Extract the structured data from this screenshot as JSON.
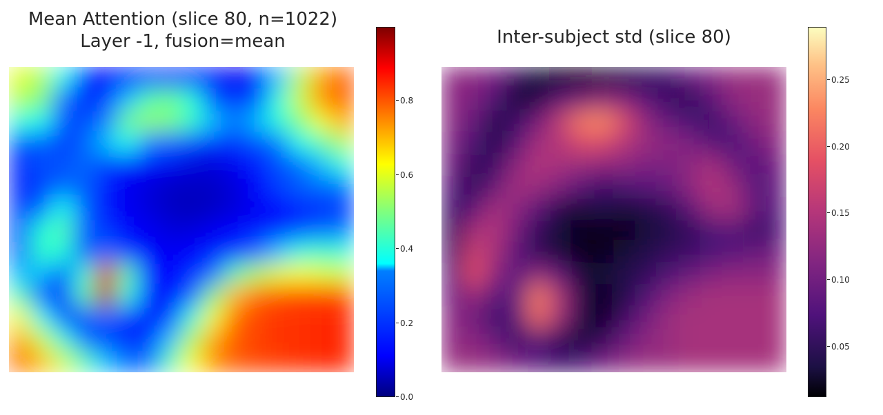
{
  "chart_data": [
    {
      "type": "heatmap",
      "title": "Mean Attention (slice 80, n=1022)",
      "subtitle": "Layer -1, fusion=mean",
      "colormap": "jet",
      "colorbar": {
        "range": [
          0.0,
          1.0
        ],
        "ticks": [
          "0.0",
          "0.2",
          "0.4",
          "0.6",
          "0.8"
        ],
        "tick_values": [
          0.0,
          0.2,
          0.4,
          0.6,
          0.8
        ]
      },
      "grid_shape": [
        14,
        16
      ],
      "values": [
        [
          0.6,
          0.55,
          0.38,
          0.18,
          0.12,
          0.15,
          0.22,
          0.18,
          0.15,
          0.12,
          0.1,
          0.12,
          0.35,
          0.55,
          0.72,
          0.8
        ],
        [
          0.55,
          0.5,
          0.3,
          0.18,
          0.22,
          0.35,
          0.45,
          0.48,
          0.4,
          0.25,
          0.2,
          0.25,
          0.4,
          0.58,
          0.74,
          0.8
        ],
        [
          0.4,
          0.38,
          0.25,
          0.25,
          0.32,
          0.48,
          0.52,
          0.5,
          0.42,
          0.35,
          0.32,
          0.35,
          0.4,
          0.5,
          0.62,
          0.72
        ],
        [
          0.25,
          0.28,
          0.22,
          0.28,
          0.35,
          0.38,
          0.32,
          0.28,
          0.22,
          0.18,
          0.2,
          0.25,
          0.32,
          0.38,
          0.45,
          0.55
        ],
        [
          0.18,
          0.25,
          0.25,
          0.3,
          0.22,
          0.15,
          0.12,
          0.1,
          0.08,
          0.08,
          0.1,
          0.15,
          0.25,
          0.3,
          0.35,
          0.4
        ],
        [
          0.18,
          0.22,
          0.3,
          0.28,
          0.15,
          0.1,
          0.08,
          0.06,
          0.06,
          0.06,
          0.08,
          0.12,
          0.22,
          0.28,
          0.3,
          0.32
        ],
        [
          0.22,
          0.28,
          0.38,
          0.28,
          0.15,
          0.1,
          0.08,
          0.06,
          0.05,
          0.06,
          0.08,
          0.1,
          0.12,
          0.15,
          0.18,
          0.2
        ],
        [
          0.25,
          0.4,
          0.45,
          0.28,
          0.2,
          0.12,
          0.1,
          0.08,
          0.08,
          0.1,
          0.12,
          0.15,
          0.18,
          0.25,
          0.3,
          0.32
        ],
        [
          0.28,
          0.42,
          0.4,
          0.25,
          0.3,
          0.2,
          0.12,
          0.1,
          0.12,
          0.15,
          0.2,
          0.28,
          0.35,
          0.4,
          0.42,
          0.4
        ],
        [
          0.35,
          0.35,
          0.25,
          0.4,
          0.92,
          0.45,
          0.15,
          0.12,
          0.18,
          0.3,
          0.45,
          0.55,
          0.6,
          0.62,
          0.6,
          0.58
        ],
        [
          0.45,
          0.25,
          0.2,
          0.45,
          0.95,
          0.4,
          0.12,
          0.15,
          0.28,
          0.5,
          0.7,
          0.78,
          0.8,
          0.82,
          0.82,
          0.82
        ],
        [
          0.62,
          0.38,
          0.22,
          0.25,
          0.3,
          0.2,
          0.12,
          0.22,
          0.4,
          0.62,
          0.78,
          0.82,
          0.84,
          0.84,
          0.85,
          0.85
        ],
        [
          0.72,
          0.58,
          0.4,
          0.3,
          0.22,
          0.18,
          0.2,
          0.35,
          0.55,
          0.72,
          0.8,
          0.82,
          0.84,
          0.84,
          0.85,
          0.85
        ],
        [
          0.78,
          0.7,
          0.58,
          0.45,
          0.35,
          0.3,
          0.32,
          0.45,
          0.62,
          0.75,
          0.8,
          0.82,
          0.83,
          0.84,
          0.85,
          0.85
        ]
      ]
    },
    {
      "type": "heatmap",
      "title": "Inter-subject std (slice 80)",
      "colormap": "magma",
      "colorbar": {
        "range": [
          0.012,
          0.29
        ],
        "ticks": [
          "0.05",
          "0.10",
          "0.15",
          "0.20",
          "0.25"
        ],
        "tick_values": [
          0.05,
          0.1,
          0.15,
          0.2,
          0.25
        ]
      },
      "grid_shape": [
        14,
        16
      ],
      "values": [
        [
          0.12,
          0.12,
          0.1,
          0.05,
          0.03,
          0.02,
          0.02,
          0.03,
          0.04,
          0.05,
          0.06,
          0.09,
          0.11,
          0.13,
          0.13,
          0.13
        ],
        [
          0.12,
          0.11,
          0.07,
          0.03,
          0.04,
          0.08,
          0.1,
          0.12,
          0.11,
          0.08,
          0.06,
          0.05,
          0.08,
          0.12,
          0.13,
          0.13
        ],
        [
          0.12,
          0.09,
          0.04,
          0.06,
          0.1,
          0.16,
          0.22,
          0.23,
          0.18,
          0.12,
          0.09,
          0.07,
          0.06,
          0.09,
          0.12,
          0.13
        ],
        [
          0.11,
          0.07,
          0.04,
          0.08,
          0.14,
          0.15,
          0.18,
          0.18,
          0.15,
          0.13,
          0.12,
          0.11,
          0.08,
          0.07,
          0.1,
          0.12
        ],
        [
          0.1,
          0.05,
          0.06,
          0.12,
          0.15,
          0.14,
          0.13,
          0.12,
          0.12,
          0.11,
          0.11,
          0.12,
          0.14,
          0.1,
          0.08,
          0.1
        ],
        [
          0.08,
          0.05,
          0.09,
          0.14,
          0.13,
          0.11,
          0.08,
          0.06,
          0.07,
          0.08,
          0.09,
          0.12,
          0.15,
          0.13,
          0.08,
          0.09
        ],
        [
          0.06,
          0.08,
          0.14,
          0.12,
          0.08,
          0.04,
          0.03,
          0.04,
          0.03,
          0.04,
          0.05,
          0.08,
          0.13,
          0.14,
          0.09,
          0.08
        ],
        [
          0.05,
          0.14,
          0.15,
          0.1,
          0.05,
          0.03,
          0.02,
          0.02,
          0.02,
          0.03,
          0.04,
          0.05,
          0.07,
          0.08,
          0.06,
          0.07
        ],
        [
          0.06,
          0.17,
          0.14,
          0.08,
          0.05,
          0.03,
          0.02,
          0.02,
          0.03,
          0.04,
          0.05,
          0.06,
          0.07,
          0.08,
          0.09,
          0.1
        ],
        [
          0.08,
          0.19,
          0.12,
          0.08,
          0.12,
          0.08,
          0.03,
          0.03,
          0.04,
          0.05,
          0.07,
          0.09,
          0.11,
          0.12,
          0.12,
          0.12
        ],
        [
          0.1,
          0.13,
          0.08,
          0.09,
          0.22,
          0.14,
          0.04,
          0.02,
          0.04,
          0.07,
          0.11,
          0.13,
          0.14,
          0.14,
          0.14,
          0.14
        ],
        [
          0.12,
          0.1,
          0.06,
          0.08,
          0.21,
          0.13,
          0.04,
          0.02,
          0.06,
          0.1,
          0.13,
          0.14,
          0.14,
          0.14,
          0.14,
          0.14
        ],
        [
          0.12,
          0.12,
          0.09,
          0.06,
          0.08,
          0.05,
          0.03,
          0.05,
          0.09,
          0.12,
          0.13,
          0.14,
          0.14,
          0.14,
          0.14,
          0.14
        ],
        [
          0.13,
          0.13,
          0.12,
          0.1,
          0.08,
          0.06,
          0.07,
          0.1,
          0.12,
          0.13,
          0.13,
          0.14,
          0.14,
          0.14,
          0.14,
          0.14
        ]
      ]
    }
  ]
}
